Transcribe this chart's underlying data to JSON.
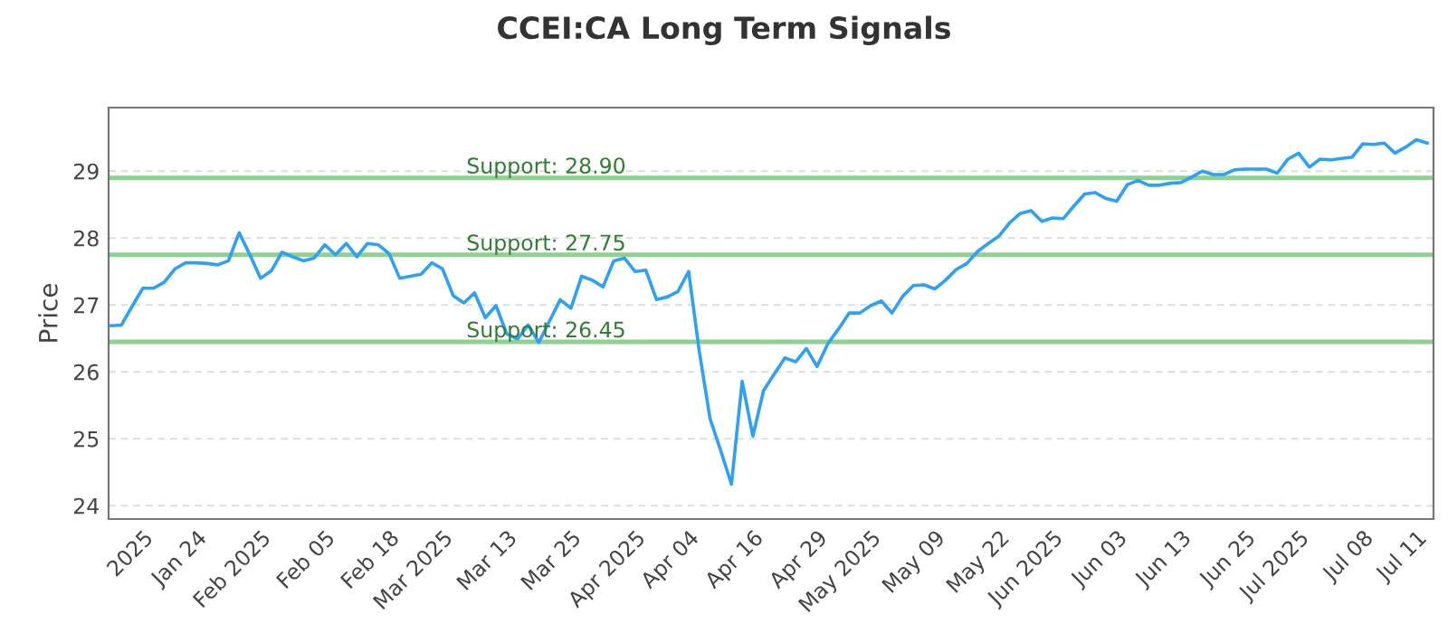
{
  "chart_data": {
    "type": "line",
    "title": "CCEI:CA Long Term Signals",
    "ylabel": "Price",
    "categories": [
      null,
      null,
      null,
      "2025",
      null,
      null,
      null,
      null,
      "Jan 24",
      null,
      null,
      null,
      null,
      null,
      "Feb 2025",
      null,
      null,
      null,
      null,
      null,
      "Feb 05",
      null,
      null,
      null,
      null,
      null,
      "Feb 18",
      null,
      null,
      null,
      null,
      "Mar 2025",
      null,
      null,
      null,
      null,
      null,
      "Mar 13",
      null,
      null,
      null,
      null,
      null,
      "Mar 25",
      null,
      null,
      null,
      null,
      null,
      "Apr 2025",
      null,
      null,
      null,
      null,
      "Apr 04",
      null,
      null,
      null,
      null,
      null,
      "Apr 16",
      null,
      null,
      null,
      null,
      null,
      "Apr 29",
      null,
      null,
      null,
      null,
      "May 2025",
      null,
      null,
      null,
      null,
      null,
      "May 09",
      null,
      null,
      null,
      null,
      null,
      "May 22",
      null,
      null,
      null,
      null,
      "Jun 2025",
      null,
      null,
      null,
      null,
      null,
      "Jun 03",
      null,
      null,
      null,
      null,
      null,
      "Jun 13",
      null,
      null,
      null,
      null,
      null,
      "Jun 25",
      null,
      null,
      null,
      null,
      "Jul 2025",
      null,
      null,
      null,
      null,
      null,
      "Jul 08",
      null,
      null,
      null,
      null,
      "Jul 11",
      null
    ],
    "series": [
      {
        "color": "#2ea1f7",
        "values": [
          26.69,
          26.7,
          26.98,
          27.25,
          27.25,
          27.34,
          27.54,
          27.63,
          27.63,
          27.62,
          27.6,
          27.66,
          28.08,
          27.75,
          27.4,
          27.51,
          27.79,
          27.72,
          27.66,
          27.7,
          27.9,
          27.75,
          27.92,
          27.72,
          27.92,
          27.9,
          27.77,
          27.4,
          27.43,
          27.46,
          27.63,
          27.54,
          27.14,
          27.03,
          27.18,
          26.81,
          26.99,
          26.57,
          26.49,
          26.7,
          26.44,
          26.76,
          27.08,
          26.95,
          27.43,
          27.37,
          27.27,
          27.66,
          27.7,
          27.5,
          27.52,
          27.08,
          27.12,
          27.2,
          27.5,
          26.3,
          25.3,
          24.82,
          24.32,
          25.86,
          25.04,
          25.72,
          25.97,
          26.21,
          26.15,
          26.35,
          26.08,
          26.42,
          26.64,
          26.88,
          26.88,
          26.99,
          27.06,
          26.88,
          27.13,
          27.29,
          27.3,
          27.24,
          27.37,
          27.53,
          27.62,
          27.8,
          27.92,
          28.03,
          28.23,
          28.37,
          28.41,
          28.25,
          28.3,
          28.29,
          28.48,
          28.66,
          28.68,
          28.59,
          28.55,
          28.8,
          28.86,
          28.79,
          28.79,
          28.82,
          28.83,
          28.91,
          29.0,
          28.95,
          28.95,
          29.02,
          29.03,
          29.03,
          29.03,
          28.97,
          29.18,
          29.27,
          29.06,
          29.18,
          29.17,
          29.19,
          29.21,
          29.41,
          29.4,
          29.42,
          29.27,
          29.36,
          29.47,
          29.42
        ]
      }
    ],
    "ylim": [
      23.8,
      29.95
    ],
    "yticks": [
      24,
      25,
      26,
      27,
      28,
      29
    ],
    "grid": "y",
    "legend": false,
    "marker": "none",
    "line_style": "solid",
    "ref_lines": [
      {
        "axis": "y",
        "value": 28.9,
        "label": "Support: 28.90",
        "color": "#8fd18f"
      },
      {
        "axis": "y",
        "value": 27.75,
        "label": "Support: 27.75",
        "color": "#8fd18f"
      },
      {
        "axis": "y",
        "value": 26.45,
        "label": "Support: 26.45",
        "color": "#8fd18f"
      }
    ]
  }
}
